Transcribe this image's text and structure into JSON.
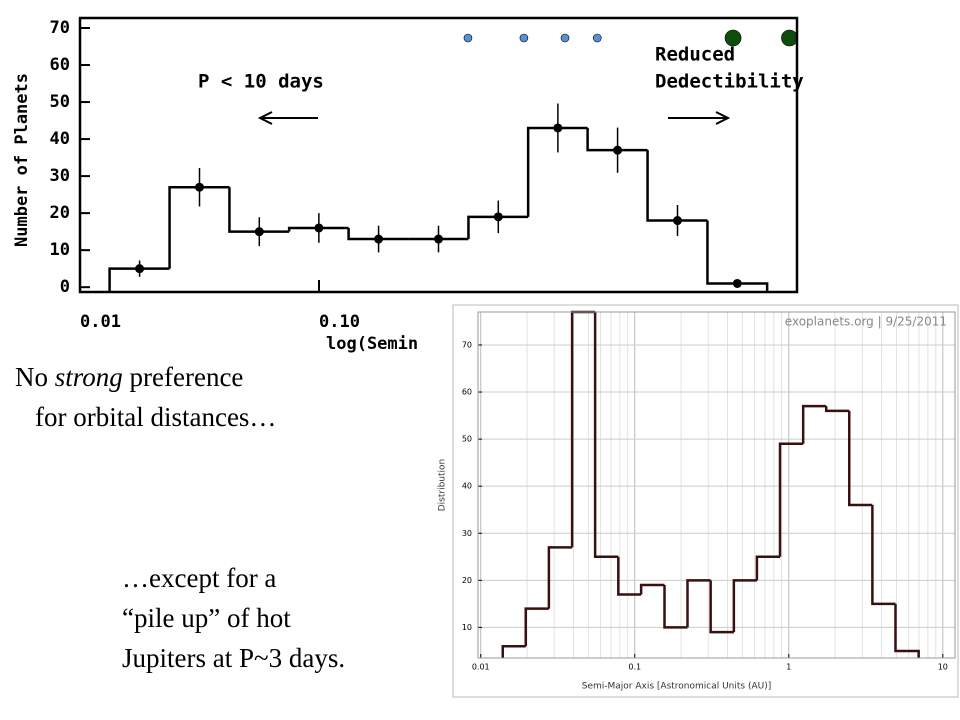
{
  "chart_data": [
    {
      "type": "histogram",
      "ylabel": "Number of Planets",
      "xlabel": "log(Semin",
      "xscale": "log",
      "xlim": [
        0.01,
        10
      ],
      "xticks": [
        {
          "value": 0.01,
          "label": "0.01"
        },
        {
          "value": 0.1,
          "label": "0.10"
        }
      ],
      "ylim": [
        -1.3,
        72.7
      ],
      "yticks": [
        0,
        10,
        20,
        30,
        40,
        50,
        60,
        70
      ],
      "bins": [
        0.0133,
        0.0237,
        0.0422,
        0.075,
        0.133,
        0.237,
        0.422,
        0.75,
        1.33,
        2.37,
        4.22,
        7.5
      ],
      "values": [
        5,
        27,
        15,
        16,
        13,
        13,
        19,
        43,
        37,
        18,
        1
      ],
      "errors": [
        2.2,
        5.2,
        3.9,
        4,
        3.6,
        3.6,
        4.4,
        6.6,
        6.1,
        4.2,
        1
      ],
      "color": "#000000",
      "grid": false,
      "markers": [
        {
          "color": "#5b8fd6",
          "x": [
            0.42,
            0.72,
            1.07,
            1.46
          ]
        },
        {
          "color": "#0f4d0f",
          "x": [
            5.4,
            9.3
          ]
        }
      ],
      "annotations": [
        "P < 10 days",
        "Reduced",
        "Dedectibility"
      ]
    },
    {
      "type": "histogram",
      "title": "exoplanets.org | 9/25/2011",
      "ylabel": "Distribution",
      "xlabel": "Semi-Major Axis [Astronomical Units (AU)]",
      "xscale": "log",
      "xlim": [
        0.0096,
        12
      ],
      "xticks": [
        0.01,
        0.1,
        1,
        10
      ],
      "ylim": [
        3.5,
        77
      ],
      "yticks": [
        10,
        20,
        30,
        40,
        50,
        60,
        70
      ],
      "bins": [
        0.0139,
        0.0196,
        0.0277,
        0.0392,
        0.0553,
        0.0782,
        0.11,
        0.156,
        0.22,
        0.311,
        0.44,
        0.621,
        0.877,
        1.24,
        1.75,
        2.47,
        3.49,
        4.93,
        6.97
      ],
      "values": [
        6,
        14,
        27,
        77,
        25,
        17,
        19,
        10,
        20,
        9,
        20,
        25,
        49,
        57,
        56,
        36,
        15,
        5
      ],
      "color": "#3a0f0f",
      "grid": true
    }
  ],
  "text": {
    "note1": {
      "line1": [
        "No",
        "strong",
        "preference"
      ],
      "line2": "for orbital distances…"
    },
    "note2": [
      "…except for a",
      "“pile up” of hot",
      "Jupiters at P~3 days."
    ]
  }
}
